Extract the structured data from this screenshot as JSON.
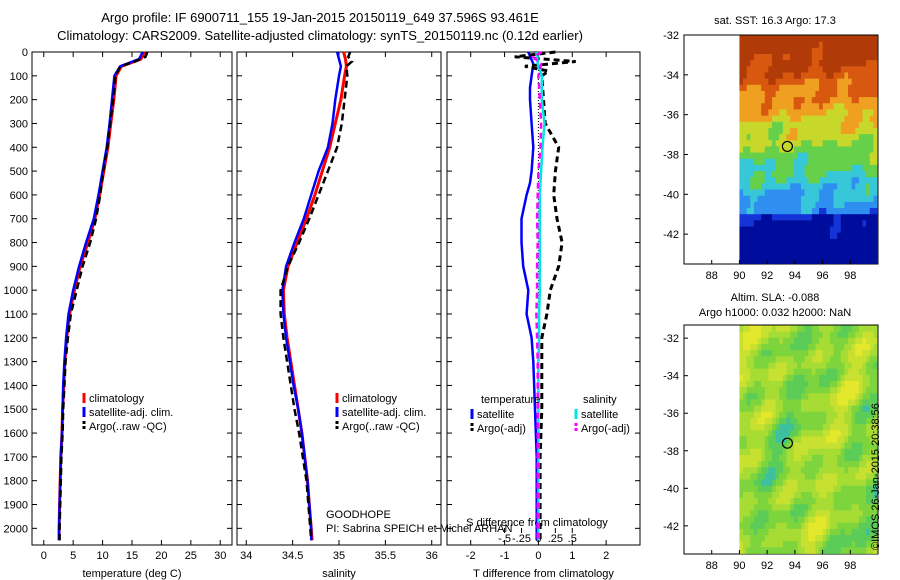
{
  "header": {
    "line1": "Argo profile: IF 6900711_155 19-Jan-2015 20150119_649 37.596S 93.461E",
    "line2": "Climatology: CARS2009. Satellite-adjusted climatology: synTS_20150119.nc (0.12d earlier)"
  },
  "credit": "©IMOS 26-Jan-2015 20:38:56",
  "colors": {
    "climatology": "#ff0000",
    "satellite": "#0000ff",
    "argo": "#000000",
    "sat_sal": "#00e5e5",
    "argo_sal": "#ff00ff"
  },
  "chart_data": [
    {
      "type": "line",
      "xlabel": "temperature (deg C)",
      "ylabel": "",
      "xlim": [
        -2,
        32
      ],
      "ylim": [
        2070,
        0
      ],
      "xticks": [
        0,
        5,
        10,
        15,
        20,
        25,
        30
      ],
      "yticks": [
        0,
        100,
        200,
        300,
        400,
        500,
        600,
        700,
        800,
        900,
        1000,
        1100,
        1200,
        1300,
        1400,
        1500,
        1600,
        1700,
        1800,
        1900,
        2000
      ],
      "legend": [
        "climatology",
        "satellite-adj. clim.",
        "Argo(..raw -QC)"
      ],
      "series": [
        {
          "name": "climatology",
          "depth": [
            0,
            30,
            60,
            100,
            200,
            300,
            400,
            500,
            600,
            700,
            800,
            900,
            1000,
            1100,
            1200,
            1300,
            1400,
            1500,
            1600,
            1700,
            1800,
            1900,
            2000,
            2050
          ],
          "values": [
            17.2,
            16.5,
            13.2,
            12.3,
            11.9,
            11.4,
            10.9,
            10.2,
            9.5,
            8.7,
            7.5,
            6.2,
            5.2,
            4.4,
            3.9,
            3.6,
            3.4,
            3.2,
            3.1,
            2.9,
            2.8,
            2.7,
            2.6,
            2.6
          ]
        },
        {
          "name": "satellite-adj. clim.",
          "depth": [
            0,
            30,
            60,
            100,
            200,
            300,
            400,
            500,
            600,
            700,
            800,
            900,
            1000,
            1100,
            1200,
            1300,
            1400,
            1500,
            1600,
            1700,
            1800,
            1900,
            2000,
            2050
          ],
          "values": [
            16.8,
            16.2,
            13.0,
            12.0,
            11.6,
            11.2,
            10.7,
            10.0,
            9.3,
            8.5,
            7.2,
            6.0,
            5.0,
            4.2,
            3.8,
            3.5,
            3.3,
            3.2,
            3.1,
            2.9,
            2.8,
            2.7,
            2.6,
            2.6
          ]
        },
        {
          "name": "Argo(..raw -QC)",
          "depth": [
            0,
            20,
            40,
            60,
            100,
            200,
            300,
            400,
            500,
            600,
            700,
            800,
            900,
            1000,
            1100,
            1200,
            1300,
            1400,
            1500,
            1600,
            1700,
            1800,
            1900,
            2000,
            2050
          ],
          "values": [
            17.6,
            17.3,
            15.5,
            13.0,
            12.2,
            11.8,
            11.3,
            10.8,
            10.1,
            9.6,
            8.9,
            7.9,
            6.6,
            5.6,
            4.6,
            4.1,
            3.7,
            3.5,
            3.3,
            3.2,
            3.0,
            2.9,
            2.8,
            2.7,
            2.7
          ]
        }
      ]
    },
    {
      "type": "line",
      "xlabel": "salinity",
      "xlim": [
        33.9,
        36.1
      ],
      "ylim": [
        2070,
        0
      ],
      "xticks": [
        34,
        34.5,
        35,
        35.5,
        36
      ],
      "legend": [
        "climatology",
        "satellite-adj. clim.",
        "Argo(..raw -QC)"
      ],
      "annotation": [
        "GOODHOPE",
        "PI: Sabrina SPEICH et Michel ARHAN"
      ],
      "series": [
        {
          "name": "climatology",
          "depth": [
            0,
            30,
            60,
            100,
            200,
            300,
            400,
            500,
            600,
            700,
            800,
            900,
            1000,
            1100,
            1200,
            1300,
            1400,
            1500,
            1600,
            1700,
            1800,
            1900,
            2000,
            2050
          ],
          "values": [
            35.05,
            35.07,
            35.08,
            35.06,
            35.02,
            34.96,
            34.9,
            34.82,
            34.74,
            34.65,
            34.55,
            34.45,
            34.4,
            34.41,
            34.44,
            34.48,
            34.52,
            34.56,
            34.6,
            34.63,
            34.66,
            34.68,
            34.7,
            34.71
          ]
        },
        {
          "name": "satellite-adj. clim.",
          "depth": [
            0,
            30,
            60,
            100,
            200,
            300,
            400,
            500,
            600,
            700,
            800,
            900,
            1000,
            1100,
            1200,
            1300,
            1400,
            1500,
            1600,
            1700,
            1800,
            1900,
            2000,
            2050
          ],
          "values": [
            34.98,
            35.0,
            35.02,
            35.0,
            34.96,
            34.93,
            34.88,
            34.78,
            34.7,
            34.62,
            34.52,
            34.43,
            34.39,
            34.4,
            34.43,
            34.47,
            34.51,
            34.56,
            34.6,
            34.63,
            34.66,
            34.68,
            34.7,
            34.7
          ]
        },
        {
          "name": "Argo(..raw -QC)",
          "depth": [
            0,
            20,
            40,
            60,
            100,
            200,
            300,
            400,
            500,
            600,
            700,
            800,
            900,
            1000,
            1100,
            1200,
            1300,
            1400,
            1500,
            1600,
            1700,
            1800,
            1900,
            2000,
            2050
          ],
          "values": [
            35.12,
            35.1,
            35.14,
            35.08,
            35.09,
            35.06,
            35.03,
            34.98,
            34.88,
            34.78,
            34.68,
            34.57,
            34.45,
            34.37,
            34.37,
            34.4,
            34.44,
            34.48,
            34.52,
            34.57,
            34.61,
            34.65,
            34.67,
            34.69,
            34.7
          ]
        }
      ]
    },
    {
      "type": "line",
      "xlabel": "T difference from climatology",
      "xlabel2": "S difference from climatology",
      "xlim": [
        -2.7,
        3.0
      ],
      "ylim": [
        2070,
        0
      ],
      "xticks": [
        -2,
        -1,
        0,
        1,
        2
      ],
      "xticks2": [
        -0.5,
        -0.25,
        0,
        0.25,
        0.5
      ],
      "legend_title_left": "temperature",
      "legend_title_right": "salinity",
      "legend_left": [
        "satellite",
        "Argo(-adj)"
      ],
      "legend_right": [
        "satellite",
        "Argo(-adj)"
      ],
      "series": [
        {
          "name": "T satellite",
          "depth": [
            0,
            50,
            100,
            150,
            200,
            300,
            400,
            500,
            550,
            600,
            700,
            800,
            900,
            1000,
            1100,
            1200,
            1300,
            1500,
            1700,
            2050
          ],
          "values": [
            -0.3,
            -0.15,
            -0.2,
            -0.25,
            -0.25,
            -0.2,
            -0.15,
            -0.2,
            -0.25,
            -0.35,
            -0.5,
            -0.5,
            -0.45,
            -0.3,
            -0.35,
            -0.2,
            -0.15,
            -0.1,
            -0.05,
            -0.05
          ]
        },
        {
          "name": "T Argo(-adj)",
          "depth": [
            0,
            20,
            40,
            60,
            80,
            100,
            200,
            300,
            400,
            500,
            600,
            700,
            800,
            900,
            1000,
            1100,
            1200,
            1300,
            1500,
            1700,
            2050
          ],
          "values": [
            0.5,
            -0.7,
            1.1,
            -0.4,
            0.3,
            0.1,
            0.15,
            0.2,
            0.6,
            0.5,
            0.45,
            0.55,
            0.7,
            0.6,
            0.35,
            0.25,
            0.1,
            0.1,
            0.1,
            0.05,
            0.05
          ]
        },
        {
          "name": "S satellite",
          "depth": [
            0,
            50,
            100,
            200,
            300,
            400,
            500,
            600,
            700,
            800,
            900,
            1000,
            1100,
            1200,
            1300,
            1500,
            1700,
            2050
          ],
          "values": [
            -0.02,
            -0.01,
            0.05,
            0.05,
            0.09,
            0.06,
            0.04,
            0.02,
            0.02,
            0.02,
            0.02,
            0.02,
            0.01,
            0.01,
            0.0,
            0.0,
            0.0,
            0.0
          ]
        },
        {
          "name": "S Argo(-adj)",
          "depth": [
            0,
            20,
            50,
            100,
            200,
            300,
            400,
            500,
            600,
            700,
            800,
            900,
            1000,
            1100,
            1200,
            1300,
            1500,
            1700,
            2050
          ],
          "values": [
            0.05,
            -0.08,
            0.04,
            0.0,
            0.02,
            0.04,
            0.03,
            0.0,
            -0.01,
            -0.02,
            -0.01,
            -0.02,
            -0.02,
            -0.03,
            -0.02,
            -0.01,
            -0.01,
            -0.01,
            -0.01
          ]
        }
      ]
    },
    {
      "type": "heatmap",
      "title": "sat. SST: 16.3 Argo: 17.3",
      "xlim": [
        86,
        100
      ],
      "ylim": [
        -43.5,
        -32
      ],
      "xticks": [
        88,
        90,
        92,
        94,
        96,
        98
      ],
      "yticks": [
        -32,
        -34,
        -36,
        -38,
        -40,
        -42
      ],
      "marker": {
        "lon": 93.461,
        "lat": -37.596
      },
      "colors": [
        "#000c9c",
        "#1434d8",
        "#2f8ff0",
        "#37c7d8",
        "#66d04a",
        "#c8d82a",
        "#f0a020",
        "#d85810",
        "#b03a08"
      ]
    },
    {
      "type": "heatmap",
      "title": "Altim. SLA: -0.088",
      "subtitle": "Argo h1000: 0.032 h2000: NaN",
      "xlim": [
        86,
        100
      ],
      "ylim": [
        -43.5,
        -31.3
      ],
      "xticks": [
        88,
        90,
        92,
        94,
        96,
        98
      ],
      "yticks": [
        -32,
        -34,
        -36,
        -38,
        -40,
        -42
      ],
      "marker": {
        "lon": 93.461,
        "lat": -37.596
      },
      "colors": [
        "#3cc0a0",
        "#5ccc58",
        "#7ed43c",
        "#a6dc34",
        "#c8e030",
        "#e4e82c"
      ]
    }
  ]
}
